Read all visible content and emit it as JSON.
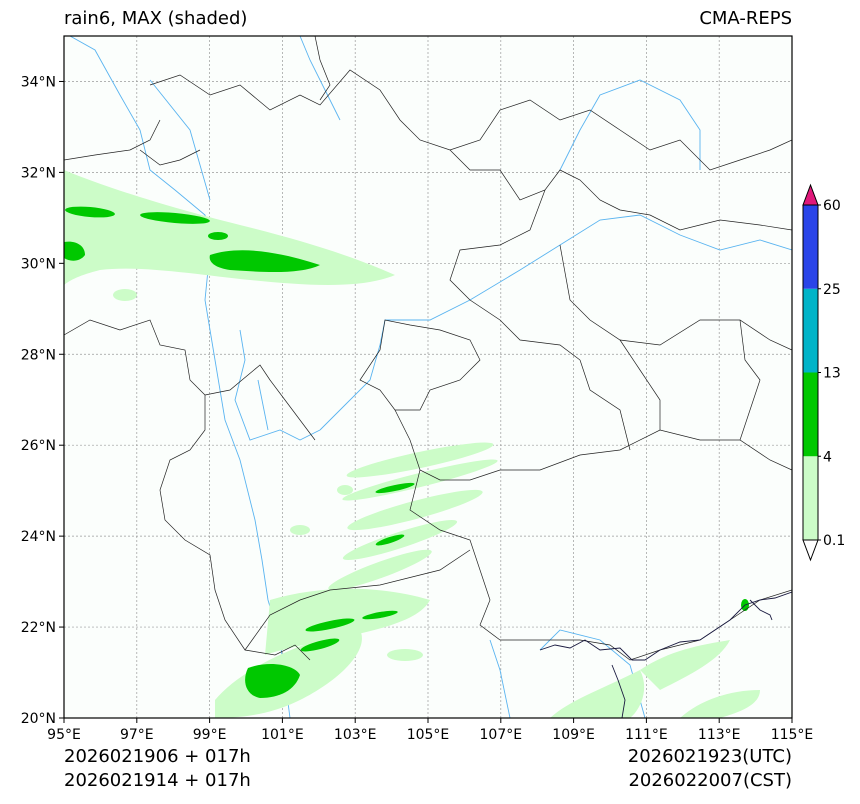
{
  "header": {
    "title_left": "rain6, MAX (shaded)",
    "title_right": "CMA-REPS"
  },
  "footer": {
    "init_utc": "2026021906  +  017h",
    "init_cst": "2026021914  +  017h",
    "valid_utc": "2026021923(UTC)",
    "valid_cst": "2026022007(CST)"
  },
  "chart_data": {
    "type": "map-contourf",
    "variable": "rain6",
    "title": "rain6, MAX (shaded)",
    "source": "CMA-REPS",
    "lon_range": [
      95,
      115
    ],
    "lat_range": [
      20,
      35
    ],
    "lon_ticks": [
      "95°E",
      "97°E",
      "99°E",
      "101°E",
      "103°E",
      "105°E",
      "107°E",
      "109°E",
      "111°E",
      "113°E",
      "115°E"
    ],
    "lat_ticks": [
      "20°N",
      "22°N",
      "24°N",
      "26°N",
      "28°N",
      "30°N",
      "32°N",
      "34°N"
    ],
    "grid": true,
    "colorbar": {
      "levels": [
        "0.1",
        "4",
        "13",
        "25",
        "60"
      ],
      "colors": [
        "#ccfcc8",
        "#00c800",
        "#00b4c8",
        "#2a44e8"
      ],
      "under_color": "#ffffff",
      "over_color": "#e0187a"
    },
    "colors": {
      "background": "#fbfefc",
      "land_border": "#000000",
      "river": "#5ab4f0",
      "grid": "#999999"
    }
  }
}
